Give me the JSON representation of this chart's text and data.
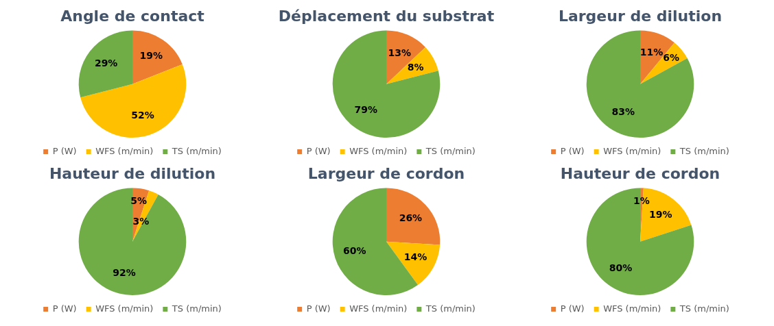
{
  "chart_data": [
    {
      "type": "pie",
      "title": "Angle de contact",
      "categories": [
        "P (W)",
        "WFS (m/min)",
        "TS (m/min)"
      ],
      "values": [
        19,
        52,
        29
      ],
      "value_labels": [
        "19%",
        "52%",
        "29%"
      ],
      "colors": [
        "#ed7d31",
        "#ffc000",
        "#70ad47"
      ],
      "legend": "bottom"
    },
    {
      "type": "pie",
      "title": "Déplacement du substrat",
      "categories": [
        "P (W)",
        "WFS (m/min)",
        "TS (m/min)"
      ],
      "values": [
        13,
        8,
        79
      ],
      "value_labels": [
        "13%",
        "8%",
        "79%"
      ],
      "colors": [
        "#ed7d31",
        "#ffc000",
        "#70ad47"
      ],
      "legend": "bottom"
    },
    {
      "type": "pie",
      "title": "Largeur de dilution",
      "categories": [
        "P (W)",
        "WFS (m/min)",
        "TS (m/min)"
      ],
      "values": [
        11,
        6,
        83
      ],
      "value_labels": [
        "11%",
        "6%",
        "83%"
      ],
      "colors": [
        "#ed7d31",
        "#ffc000",
        "#70ad47"
      ],
      "legend": "bottom"
    },
    {
      "type": "pie",
      "title": "Hauteur de dilution",
      "categories": [
        "P (W)",
        "WFS (m/min)",
        "TS (m/min)"
      ],
      "values": [
        5,
        3,
        92
      ],
      "value_labels": [
        "5%",
        "3%",
        "92%"
      ],
      "colors": [
        "#ed7d31",
        "#ffc000",
        "#70ad47"
      ],
      "legend": "bottom"
    },
    {
      "type": "pie",
      "title": "Largeur de cordon",
      "categories": [
        "P (W)",
        "WFS (m/min)",
        "TS (m/min)"
      ],
      "values": [
        26,
        14,
        60
      ],
      "value_labels": [
        "26%",
        "14%",
        "60%"
      ],
      "colors": [
        "#ed7d31",
        "#ffc000",
        "#70ad47"
      ],
      "legend": "bottom"
    },
    {
      "type": "pie",
      "title": "Hauteur de cordon",
      "categories": [
        "P (W)",
        "WFS (m/min)",
        "TS (m/min)"
      ],
      "values": [
        1,
        19,
        80
      ],
      "value_labels": [
        "1%",
        "19%",
        "80%"
      ],
      "colors": [
        "#ed7d31",
        "#ffc000",
        "#70ad47"
      ],
      "legend": "bottom"
    }
  ]
}
